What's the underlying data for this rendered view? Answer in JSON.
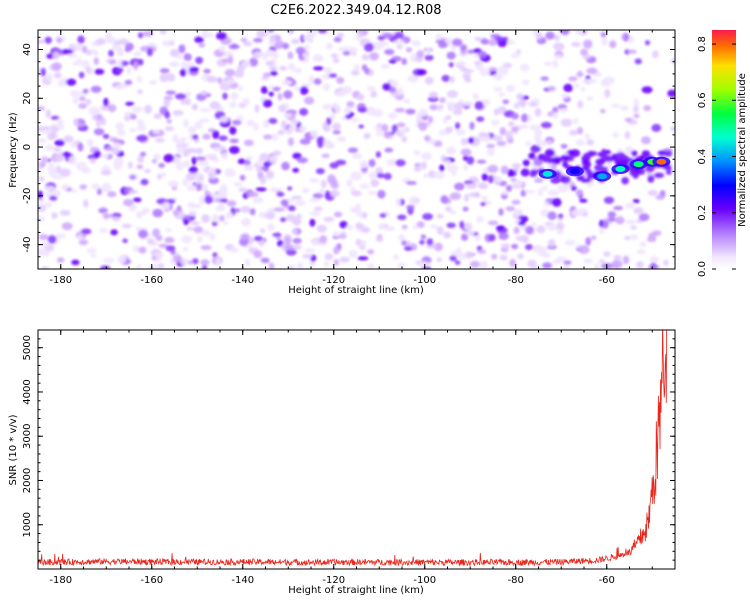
{
  "title": "C2E6.2022.349.04.12.R08",
  "chart_data": [
    {
      "type": "heatmap",
      "xlabel": "Height of straight line (km)",
      "ylabel": "Frequency (Hz)",
      "xlim": [
        -185,
        -45
      ],
      "ylim": [
        -50,
        48
      ],
      "xticks": [
        -180,
        -160,
        -140,
        -120,
        -100,
        -80,
        -60
      ],
      "yticks": [
        -40,
        -20,
        0,
        20,
        40
      ],
      "colorbar": {
        "label": "Normalized spectral amplitude",
        "range": [
          0,
          0.85
        ],
        "ticks": [
          0.0,
          0.2,
          0.4,
          0.6,
          0.8
        ],
        "colormap": "rainbow-white"
      },
      "signal_trace": [
        {
          "x": -73,
          "y": -11,
          "amp": 0.45
        },
        {
          "x": -67,
          "y": -10,
          "amp": 0.28
        },
        {
          "x": -61,
          "y": -12,
          "amp": 0.4
        },
        {
          "x": -57,
          "y": -9,
          "amp": 0.48
        },
        {
          "x": -53,
          "y": -7,
          "amp": 0.52
        },
        {
          "x": -50,
          "y": -6,
          "amp": 0.58
        },
        {
          "x": -48,
          "y": -6,
          "amp": 0.8
        }
      ]
    },
    {
      "type": "line",
      "xlabel": "Height of straight line (km)",
      "ylabel": "SNR (10 * v/v)",
      "xlim": [
        -185,
        -45
      ],
      "ylim": [
        0,
        5400
      ],
      "xticks": [
        -180,
        -160,
        -140,
        -120,
        -100,
        -80,
        -60
      ],
      "yticks": [
        1000,
        2000,
        3000,
        4000,
        5000
      ],
      "line_color": "#e8281e",
      "series": [
        {
          "x": [
            -185,
            -170,
            -155,
            -140,
            -125,
            -110,
            -95,
            -80,
            -70,
            -62,
            -58,
            -55,
            -53,
            -51,
            -50,
            -49,
            -48,
            -47.5,
            -47
          ],
          "values": [
            150,
            170,
            160,
            160,
            150,
            155,
            150,
            150,
            160,
            200,
            280,
            380,
            600,
            1000,
            1700,
            2600,
            3900,
            4700,
            5300
          ]
        }
      ]
    }
  ]
}
